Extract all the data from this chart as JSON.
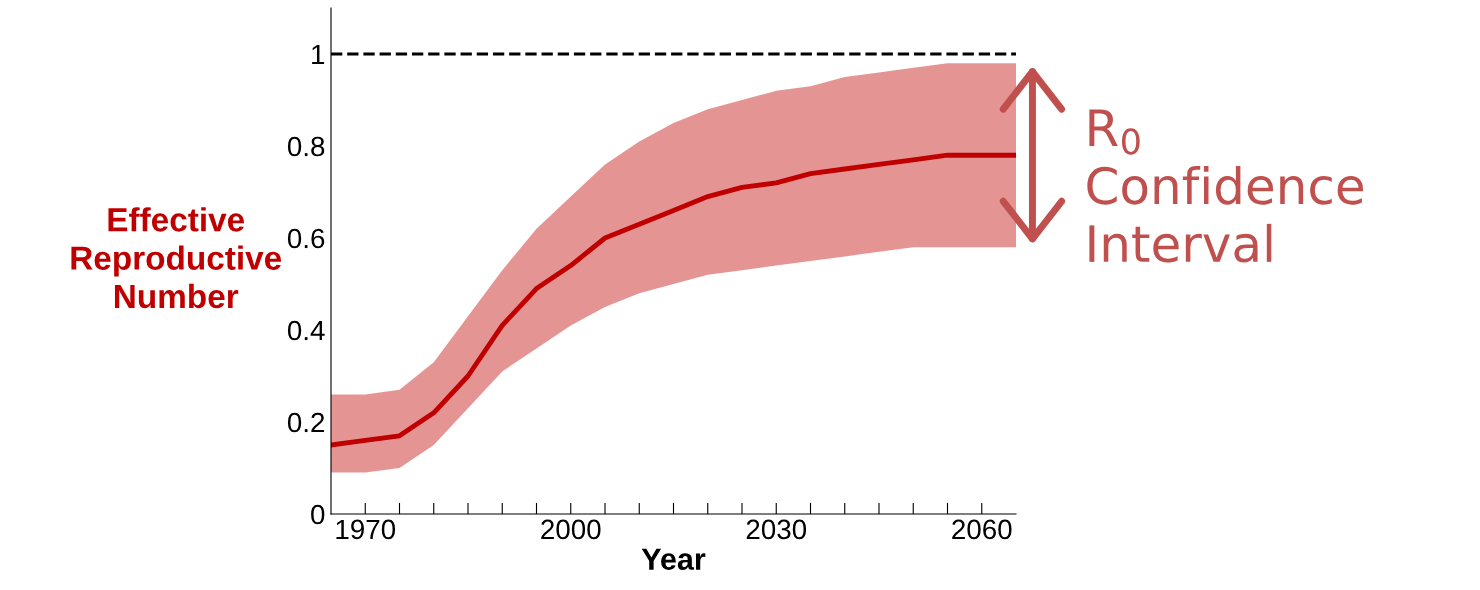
{
  "chart_data": {
    "type": "line",
    "xlabel": "Year",
    "ylabel": "Effective\nReproductive\nNumber",
    "x": [
      1965,
      1970,
      1975,
      1980,
      1985,
      1990,
      1995,
      2000,
      2005,
      2010,
      2015,
      2020,
      2025,
      2030,
      2035,
      2040,
      2045,
      2050,
      2055,
      2060,
      2065
    ],
    "series": [
      {
        "color": "#c00000",
        "values": [
          0.15,
          0.16,
          0.17,
          0.22,
          0.3,
          0.41,
          0.49,
          0.54,
          0.6,
          0.63,
          0.66,
          0.69,
          0.71,
          0.72,
          0.74,
          0.75,
          0.76,
          0.77,
          0.78,
          0.78,
          0.78
        ],
        "lower": [
          0.09,
          0.09,
          0.1,
          0.15,
          0.23,
          0.31,
          0.36,
          0.41,
          0.45,
          0.48,
          0.5,
          0.52,
          0.53,
          0.54,
          0.55,
          0.56,
          0.57,
          0.58,
          0.58,
          0.58,
          0.58
        ],
        "upper": [
          0.26,
          0.26,
          0.27,
          0.33,
          0.43,
          0.53,
          0.62,
          0.69,
          0.76,
          0.81,
          0.85,
          0.88,
          0.9,
          0.92,
          0.93,
          0.95,
          0.96,
          0.97,
          0.98,
          0.98,
          0.98
        ]
      }
    ],
    "xlim": [
      1965,
      2065
    ],
    "xticks": [
      1970,
      {
        "value": 1975,
        "label": null
      },
      {
        "value": 1980,
        "label": null
      },
      {
        "value": 1985,
        "label": null
      },
      {
        "value": 1990,
        "label": null
      },
      {
        "value": 1995,
        "label": null
      },
      2000,
      {
        "value": 2005,
        "label": null
      },
      {
        "value": 2010,
        "label": null
      },
      {
        "value": 2015,
        "label": null
      },
      {
        "value": 2020,
        "label": null
      },
      {
        "value": 2025,
        "label": null
      },
      2030,
      {
        "value": 2035,
        "label": null
      },
      {
        "value": 2040,
        "label": null
      },
      {
        "value": 2045,
        "label": null
      },
      {
        "value": 2050,
        "label": null
      },
      {
        "value": 2055,
        "label": null
      },
      2060
    ],
    "ylim": [
      0,
      1.1
    ],
    "yticks": [
      0,
      0.2,
      0.4,
      0.6,
      0.8,
      1
    ],
    "ref_lines": [
      {
        "axis": "y",
        "value": 1,
        "color": "#000000",
        "line_style": "dashed"
      }
    ],
    "annotations": [
      "R$_{0}$\nConfidence\nInterval"
    ],
    "grid": false,
    "marker": "none",
    "line_style": "solid"
  }
}
